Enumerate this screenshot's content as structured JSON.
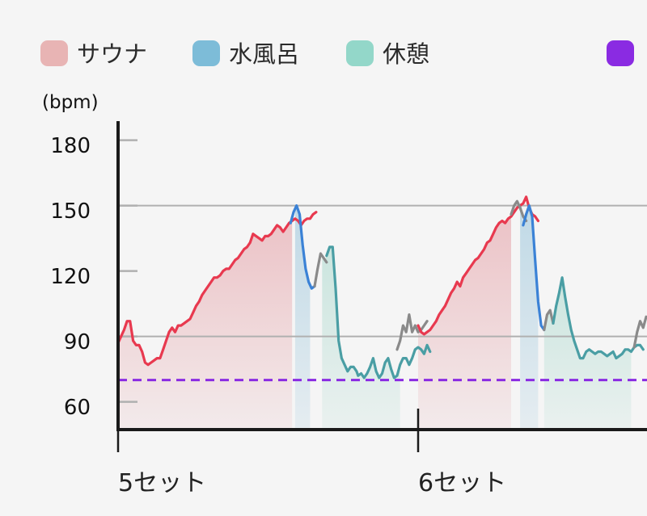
{
  "colors": {
    "sauna": "#e8394f",
    "sauna_fill": "#e49aa1",
    "sauna_legend": "#e8b4b4",
    "cold": "#3b82d6",
    "cold_fill": "#9cc6dc",
    "cold_legend": "#7dbcd8",
    "rest": "#4a9ea4",
    "rest_fill": "#a8d8cc",
    "rest_legend": "#93d7c9",
    "transition": "#8a8a8a",
    "threshold": "#8a2be2",
    "axis": "#1a1a1a",
    "grid": "#b0b0b0"
  },
  "chart_data": {
    "type": "line",
    "ylabel": "(bpm)",
    "ylim": [
      48,
      190
    ],
    "yticks": [
      60,
      90,
      120,
      150,
      180
    ],
    "gridlines_at": [
      90,
      150
    ],
    "xticks": [
      {
        "label": "5セット",
        "x": 0
      },
      {
        "label": "6セット",
        "x": 100
      }
    ],
    "xlim": [
      0,
      176
    ],
    "legend": {
      "position": "top",
      "items": [
        {
          "name": "サウナ",
          "color_key": "sauna_legend"
        },
        {
          "name": "水風呂",
          "color_key": "cold_legend"
        },
        {
          "name": "休憩",
          "color_key": "rest_legend"
        },
        {
          "name": "",
          "color_key": "threshold"
        }
      ]
    },
    "threshold_line": {
      "value": 70,
      "style": "dashed"
    },
    "segments": [
      {
        "phase": "sauna",
        "points": [
          [
            0,
            87
          ],
          [
            1,
            90
          ],
          [
            2,
            93
          ],
          [
            3,
            97
          ],
          [
            4,
            97
          ],
          [
            5,
            88
          ],
          [
            6,
            86
          ],
          [
            7,
            86
          ],
          [
            8,
            83
          ],
          [
            9,
            78
          ],
          [
            10,
            77
          ],
          [
            11,
            78
          ],
          [
            12,
            79
          ],
          [
            13,
            80
          ],
          [
            14,
            80
          ],
          [
            15,
            84
          ],
          [
            16,
            88
          ],
          [
            17,
            92
          ],
          [
            18,
            94
          ],
          [
            19,
            92
          ],
          [
            20,
            95
          ],
          [
            21,
            95
          ],
          [
            22,
            96
          ],
          [
            23,
            97
          ],
          [
            24,
            98
          ],
          [
            25,
            101
          ],
          [
            26,
            104
          ],
          [
            27,
            106
          ],
          [
            28,
            109
          ],
          [
            29,
            111
          ],
          [
            30,
            113
          ],
          [
            31,
            115
          ],
          [
            32,
            117
          ],
          [
            33,
            117
          ],
          [
            34,
            118
          ],
          [
            35,
            120
          ],
          [
            36,
            121
          ],
          [
            37,
            121
          ],
          [
            38,
            123
          ],
          [
            39,
            125
          ],
          [
            40,
            126
          ],
          [
            41,
            128
          ],
          [
            42,
            130
          ],
          [
            43,
            131
          ],
          [
            44,
            133
          ],
          [
            45,
            137
          ],
          [
            46,
            136
          ],
          [
            47,
            135
          ],
          [
            48,
            134
          ],
          [
            49,
            136
          ],
          [
            50,
            136
          ],
          [
            51,
            137
          ],
          [
            52,
            139
          ],
          [
            53,
            141
          ],
          [
            54,
            140
          ],
          [
            55,
            138
          ],
          [
            56,
            140
          ],
          [
            57,
            142
          ],
          [
            58,
            143
          ],
          [
            59,
            144
          ],
          [
            60,
            143
          ],
          [
            61,
            141
          ],
          [
            62,
            143
          ],
          [
            63,
            144
          ],
          [
            64,
            144
          ],
          [
            65,
            146
          ],
          [
            66,
            147
          ]
        ]
      },
      {
        "phase": "cold",
        "points": [
          [
            57.5,
            142
          ],
          [
            58.5,
            147
          ],
          [
            59.5,
            150
          ],
          [
            60.5,
            146
          ],
          [
            61.5,
            132
          ],
          [
            62.5,
            121
          ],
          [
            63.5,
            115
          ],
          [
            64.5,
            112
          ],
          [
            65.5,
            113
          ]
        ]
      },
      {
        "phase": "transition",
        "points": [
          [
            65.5,
            113
          ],
          [
            66.5,
            121
          ],
          [
            67.5,
            128
          ],
          [
            68.5,
            126
          ],
          [
            69.5,
            124
          ]
        ]
      },
      {
        "phase": "rest",
        "points": [
          [
            69.5,
            127
          ],
          [
            70.5,
            131
          ],
          [
            71.5,
            131
          ],
          [
            72.5,
            112
          ],
          [
            73.5,
            88
          ],
          [
            74.5,
            80
          ],
          [
            75.5,
            77
          ],
          [
            76.5,
            74
          ],
          [
            77.5,
            76
          ],
          [
            78.5,
            76
          ],
          [
            79.5,
            74
          ],
          [
            80,
            72
          ],
          [
            81,
            73
          ],
          [
            82,
            71
          ],
          [
            83,
            73
          ],
          [
            84,
            76
          ],
          [
            85,
            80
          ],
          [
            86,
            74
          ],
          [
            87,
            71
          ],
          [
            88,
            73
          ],
          [
            89,
            78
          ],
          [
            90,
            80
          ],
          [
            91,
            75
          ],
          [
            92,
            71
          ],
          [
            93,
            72
          ],
          [
            94,
            77
          ],
          [
            95,
            80
          ],
          [
            96,
            80
          ],
          [
            97,
            77
          ],
          [
            98,
            80
          ],
          [
            99,
            84
          ],
          [
            100,
            85
          ],
          [
            101,
            84
          ],
          [
            102,
            82
          ],
          [
            103,
            86
          ],
          [
            104,
            83
          ]
        ]
      },
      {
        "phase": "transition",
        "points": [
          [
            93,
            84
          ],
          [
            94,
            88
          ],
          [
            95,
            95
          ],
          [
            96,
            92
          ],
          [
            97,
            100
          ],
          [
            98,
            92
          ],
          [
            99,
            95
          ],
          [
            100,
            92
          ],
          [
            101,
            93
          ],
          [
            102,
            95
          ],
          [
            103,
            97
          ]
        ]
      },
      {
        "phase": "sauna",
        "points": [
          [
            100,
            95
          ],
          [
            101,
            92
          ],
          [
            102,
            91
          ],
          [
            103,
            92
          ],
          [
            104,
            93
          ],
          [
            105,
            95
          ],
          [
            106,
            97
          ],
          [
            107,
            100
          ],
          [
            108,
            102
          ],
          [
            109,
            104
          ],
          [
            110,
            107
          ],
          [
            111,
            110
          ],
          [
            112,
            112
          ],
          [
            113,
            115
          ],
          [
            114,
            113
          ],
          [
            115,
            117
          ],
          [
            116,
            119
          ],
          [
            117,
            121
          ],
          [
            118,
            123
          ],
          [
            119,
            125
          ],
          [
            120,
            126
          ],
          [
            121,
            128
          ],
          [
            122,
            130
          ],
          [
            123,
            133
          ],
          [
            124,
            134
          ],
          [
            125,
            137
          ],
          [
            126,
            140
          ],
          [
            127,
            142
          ],
          [
            128,
            143
          ],
          [
            129,
            142
          ],
          [
            130,
            144
          ],
          [
            131,
            145
          ],
          [
            132,
            147
          ],
          [
            133,
            149
          ],
          [
            134,
            150
          ],
          [
            135,
            151
          ],
          [
            136,
            154
          ],
          [
            137,
            149
          ],
          [
            138,
            146
          ],
          [
            139,
            145
          ],
          [
            140,
            143
          ]
        ]
      },
      {
        "phase": "transition",
        "points": [
          [
            131,
            146
          ],
          [
            132,
            150
          ],
          [
            133,
            152
          ],
          [
            134,
            149
          ],
          [
            135,
            145
          ],
          [
            136,
            143
          ]
        ]
      },
      {
        "phase": "cold",
        "points": [
          [
            135,
            141
          ],
          [
            136,
            146
          ],
          [
            137,
            150
          ],
          [
            138,
            145
          ],
          [
            139,
            125
          ],
          [
            140,
            106
          ],
          [
            141,
            95
          ],
          [
            142,
            93
          ]
        ]
      },
      {
        "phase": "transition",
        "points": [
          [
            142,
            93
          ],
          [
            143,
            100
          ],
          [
            144,
            102
          ],
          [
            145,
            96
          ]
        ]
      },
      {
        "phase": "rest",
        "points": [
          [
            145,
            96
          ],
          [
            146,
            104
          ],
          [
            147,
            110
          ],
          [
            148,
            117
          ],
          [
            149,
            108
          ],
          [
            150,
            100
          ],
          [
            151,
            93
          ],
          [
            152,
            88
          ],
          [
            153,
            84
          ],
          [
            154,
            80
          ],
          [
            155,
            80
          ],
          [
            156,
            83
          ],
          [
            157,
            84
          ],
          [
            158,
            83
          ],
          [
            159,
            82
          ],
          [
            160,
            83
          ],
          [
            161,
            83
          ],
          [
            162,
            82
          ],
          [
            163,
            81
          ],
          [
            164,
            82
          ],
          [
            165,
            83
          ],
          [
            166,
            80
          ],
          [
            167,
            81
          ],
          [
            168,
            82
          ],
          [
            169,
            84
          ],
          [
            170,
            84
          ],
          [
            171,
            83
          ],
          [
            172,
            85
          ],
          [
            173,
            86
          ],
          [
            174,
            86
          ],
          [
            175,
            84
          ]
        ]
      },
      {
        "phase": "transition",
        "points": [
          [
            172,
            85
          ],
          [
            173,
            92
          ],
          [
            174,
            97
          ],
          [
            175,
            94
          ],
          [
            176,
            99
          ]
        ]
      }
    ],
    "fills": [
      {
        "phase": "sauna",
        "from": 0,
        "to": 58
      },
      {
        "phase": "cold",
        "from": 59,
        "to": 64
      },
      {
        "phase": "rest",
        "from": 68,
        "to": 94
      },
      {
        "phase": "sauna",
        "from": 100,
        "to": 131
      },
      {
        "phase": "cold",
        "from": 134,
        "to": 140
      },
      {
        "phase": "rest",
        "from": 142,
        "to": 171
      }
    ]
  }
}
